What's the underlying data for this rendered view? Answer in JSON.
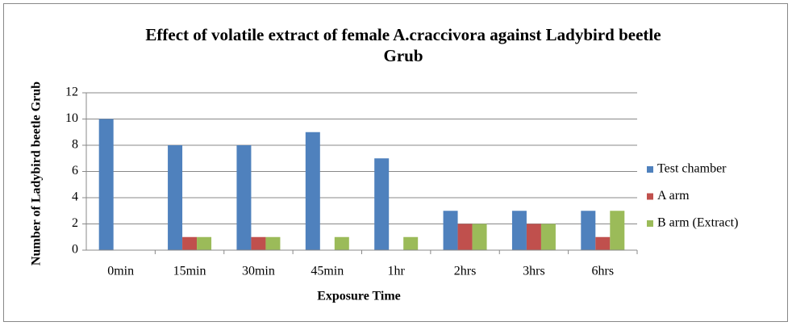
{
  "chart_data": {
    "type": "bar",
    "title": "Effect of volatile extract of female A.craccivora against Ladybird beetle Grub",
    "x_label": "Exposure Time",
    "y_label": "Number of Ladybird beetle Grub",
    "categories": [
      "0min",
      "15min",
      "30min",
      "45min",
      "1hr",
      "2hrs",
      "3hrs",
      "6hrs"
    ],
    "series": [
      {
        "name": "Test chamber",
        "color": "#4f81bd",
        "values": [
          10,
          8,
          8,
          9,
          7,
          3,
          3,
          3
        ]
      },
      {
        "name": "A arm",
        "color": "#c0504d",
        "values": [
          0,
          1,
          1,
          0,
          0,
          2,
          2,
          1
        ]
      },
      {
        "name": "B arm (Extract)",
        "color": "#9bbb59",
        "values": [
          0,
          1,
          1,
          1,
          1,
          2,
          2,
          3
        ]
      }
    ],
    "ylim": [
      0,
      12
    ],
    "yticks": [
      0,
      2,
      4,
      6,
      8,
      10,
      12
    ],
    "grid": true,
    "legend": "right"
  }
}
